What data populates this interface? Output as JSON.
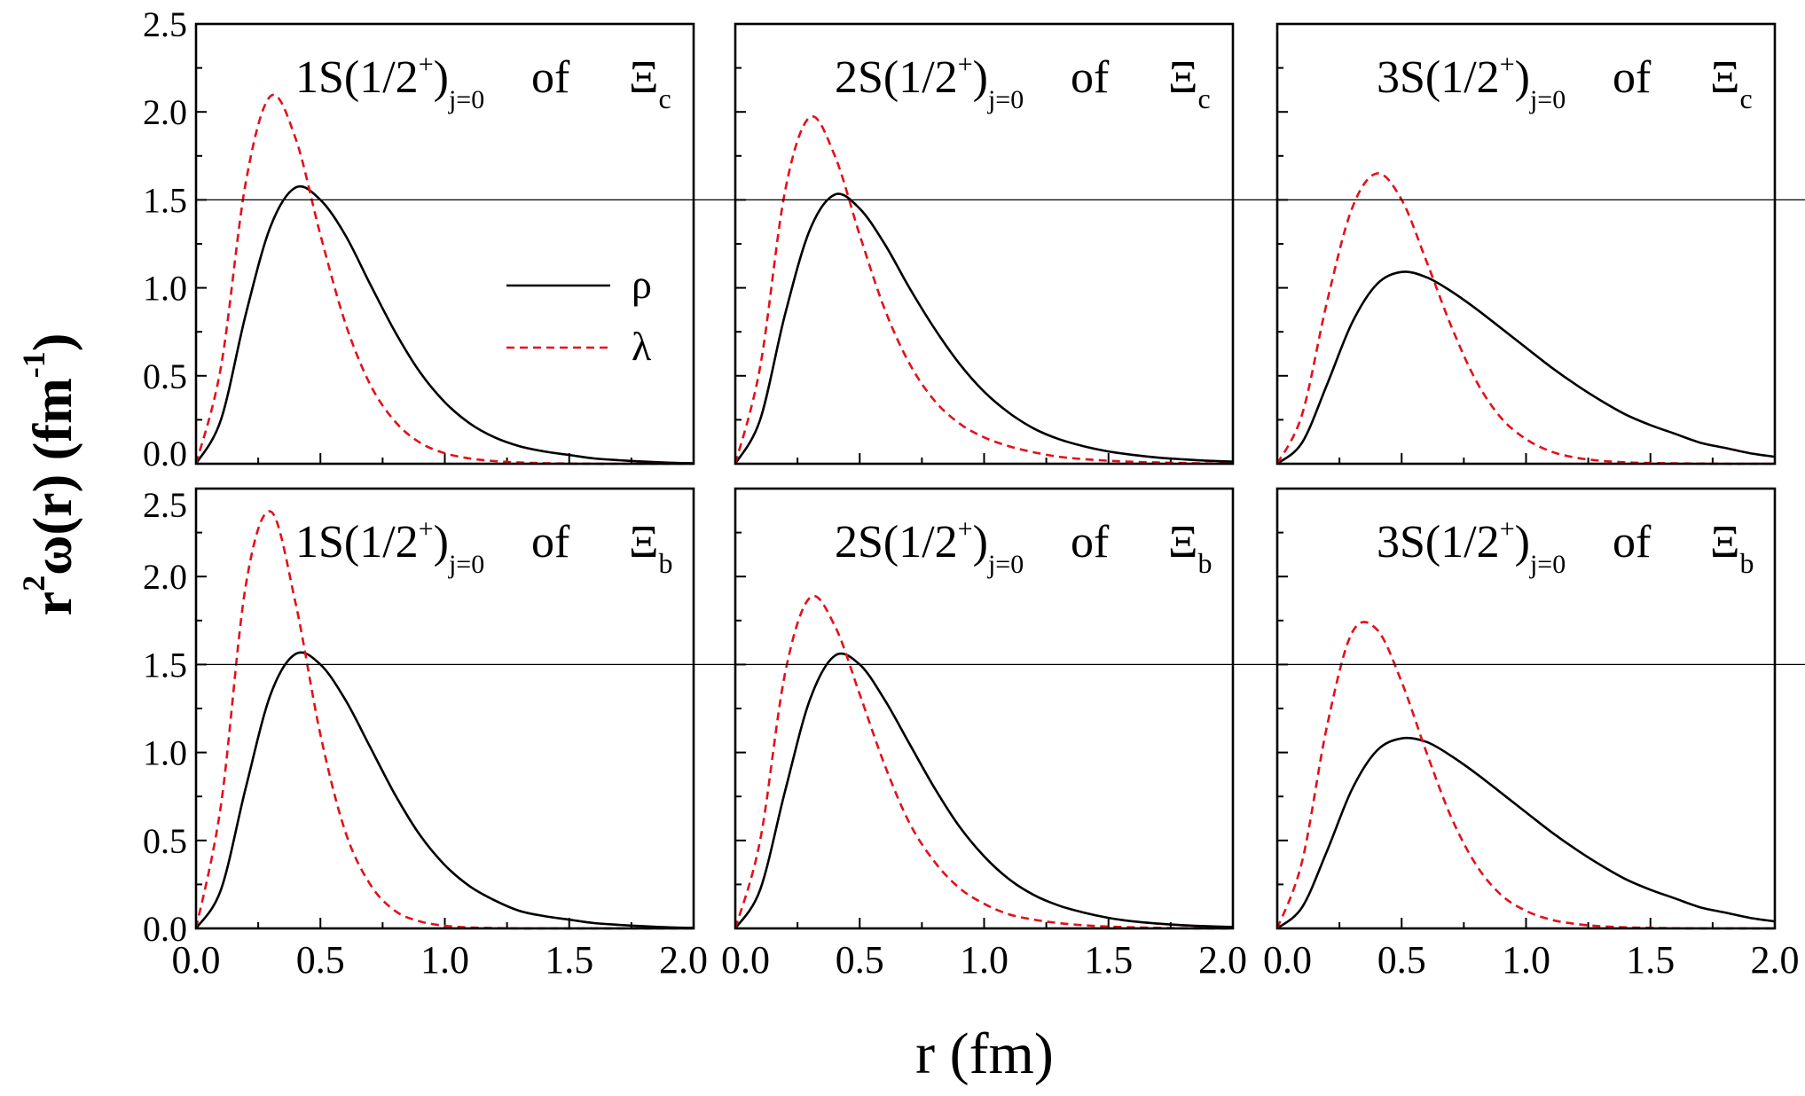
{
  "chart_data": {
    "type": "line",
    "layout": "2x3 grid of panels, shared axes",
    "xlabel": "r (fm)",
    "ylabel": {
      "base": "r",
      "sup": "2",
      "main": "ω(r) (fm",
      "unit_sup": "-1",
      "close": ")"
    },
    "xlim": [
      0.0,
      2.0
    ],
    "ylim": [
      0.0,
      2.5
    ],
    "x_ticks": [
      "0.0",
      "0.5",
      "1.0",
      "1.5",
      "2.0"
    ],
    "y_ticks": [
      "0.0",
      "0.5",
      "1.0",
      "1.5",
      "2.0",
      "2.5"
    ],
    "reference_line_y": 1.5,
    "grid": false,
    "legend": {
      "placement": "right-middle of top-left panel",
      "entries": [
        {
          "name": "ρ",
          "color": "#000000",
          "style": "solid"
        },
        {
          "name": "λ",
          "color": "#e3101a",
          "style": "dashed"
        }
      ]
    },
    "x": [
      0.0,
      0.1,
      0.2,
      0.3,
      0.4,
      0.5,
      0.6,
      0.7,
      0.8,
      0.9,
      1.0,
      1.1,
      1.2,
      1.3,
      1.4,
      1.5,
      1.6,
      1.7,
      1.8,
      1.9,
      2.0
    ],
    "panels": [
      {
        "title": {
          "state": "1S(1/2",
          "sup": "+",
          "close": ")",
          "sub": "j=0",
          "of": "of",
          "baryon": "Ξ",
          "flavor": "c"
        },
        "series": [
          {
            "name": "ρ",
            "values": [
              0,
              0.25,
              0.85,
              1.35,
              1.57,
              1.5,
              1.3,
              1.02,
              0.75,
              0.52,
              0.35,
              0.23,
              0.15,
              0.1,
              0.07,
              0.05,
              0.03,
              0.02,
              0.012,
              0.006,
              0.003
            ]
          },
          {
            "name": "λ",
            "values": [
              0,
              0.55,
              1.6,
              2.09,
              1.85,
              1.3,
              0.8,
              0.45,
              0.24,
              0.12,
              0.06,
              0.03,
              0.015,
              0.007,
              0.003,
              0.001,
              0,
              0,
              0,
              0,
              0
            ]
          }
        ]
      },
      {
        "title": {
          "state": "2S(1/2",
          "sup": "+",
          "close": ")",
          "sub": "j=0",
          "of": "of",
          "baryon": "Ξ",
          "flavor": "c"
        },
        "series": [
          {
            "name": "ρ",
            "values": [
              0,
              0.25,
              0.85,
              1.33,
              1.53,
              1.45,
              1.25,
              1.0,
              0.77,
              0.57,
              0.41,
              0.29,
              0.2,
              0.14,
              0.1,
              0.07,
              0.05,
              0.035,
              0.025,
              0.017,
              0.012
            ]
          },
          {
            "name": "λ",
            "values": [
              0,
              0.55,
              1.55,
              1.97,
              1.75,
              1.3,
              0.88,
              0.57,
              0.36,
              0.23,
              0.15,
              0.1,
              0.065,
              0.04,
              0.026,
              0.017,
              0.011,
              0.007,
              0.004,
              0.002,
              0.001
            ]
          }
        ]
      },
      {
        "title": {
          "state": "3S(1/2",
          "sup": "+",
          "close": ")",
          "sub": "j=0",
          "of": "of",
          "baryon": "Ξ",
          "flavor": "c"
        },
        "series": [
          {
            "name": "ρ",
            "values": [
              0,
              0.12,
              0.45,
              0.8,
              1.02,
              1.09,
              1.06,
              0.98,
              0.88,
              0.77,
              0.66,
              0.55,
              0.45,
              0.36,
              0.28,
              0.22,
              0.17,
              0.12,
              0.09,
              0.06,
              0.04
            ]
          },
          {
            "name": "λ",
            "values": [
              0,
              0.28,
              0.92,
              1.45,
              1.65,
              1.5,
              1.15,
              0.78,
              0.47,
              0.26,
              0.14,
              0.07,
              0.035,
              0.017,
              0.008,
              0.004,
              0.002,
              0.001,
              0,
              0,
              0
            ]
          }
        ]
      },
      {
        "title": {
          "state": "1S(1/2",
          "sup": "+",
          "close": ")",
          "sub": "j=0",
          "of": "of",
          "baryon": "Ξ",
          "flavor": "b"
        },
        "series": [
          {
            "name": "ρ",
            "values": [
              0,
              0.22,
              0.8,
              1.33,
              1.56,
              1.5,
              1.3,
              1.03,
              0.76,
              0.53,
              0.36,
              0.24,
              0.16,
              0.1,
              0.07,
              0.05,
              0.03,
              0.02,
              0.012,
              0.006,
              0.003
            ]
          },
          {
            "name": "λ",
            "values": [
              0,
              0.7,
              1.95,
              2.37,
              1.85,
              1.1,
              0.55,
              0.25,
              0.1,
              0.04,
              0.015,
              0.005,
              0.002,
              0,
              0,
              0,
              0,
              0,
              0,
              0,
              0
            ]
          }
        ]
      },
      {
        "title": {
          "state": "2S(1/2",
          "sup": "+",
          "close": ")",
          "sub": "j=0",
          "of": "of",
          "baryon": "Ξ",
          "flavor": "b"
        },
        "series": [
          {
            "name": "ρ",
            "values": [
              0,
              0.22,
              0.78,
              1.3,
              1.55,
              1.5,
              1.3,
              1.05,
              0.8,
              0.58,
              0.41,
              0.28,
              0.19,
              0.13,
              0.09,
              0.06,
              0.04,
              0.027,
              0.018,
              0.012,
              0.008
            ]
          },
          {
            "name": "λ",
            "values": [
              0,
              0.5,
              1.45,
              1.88,
              1.72,
              1.33,
              0.93,
              0.6,
              0.38,
              0.23,
              0.14,
              0.08,
              0.05,
              0.03,
              0.018,
              0.01,
              0.006,
              0.003,
              0.001,
              0,
              0
            ]
          }
        ]
      },
      {
        "title": {
          "state": "3S(1/2",
          "sup": "+",
          "close": ")",
          "sub": "j=0",
          "of": "of",
          "baryon": "Ξ",
          "flavor": "b"
        },
        "series": [
          {
            "name": "ρ",
            "values": [
              0,
              0.12,
              0.44,
              0.79,
              1.01,
              1.08,
              1.06,
              0.98,
              0.88,
              0.77,
              0.66,
              0.55,
              0.45,
              0.36,
              0.28,
              0.22,
              0.17,
              0.12,
              0.09,
              0.06,
              0.04
            ]
          },
          {
            "name": "λ",
            "values": [
              0,
              0.38,
              1.15,
              1.68,
              1.7,
              1.4,
              1.0,
              0.63,
              0.36,
              0.19,
              0.1,
              0.05,
              0.025,
              0.012,
              0.006,
              0.003,
              0.001,
              0,
              0,
              0,
              0
            ]
          }
        ]
      }
    ]
  }
}
